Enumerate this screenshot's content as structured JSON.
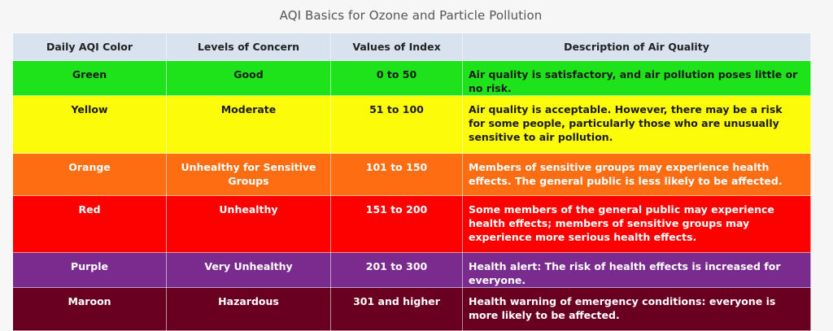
{
  "title": "AQI Basics for Ozone and Particle Pollution",
  "headers": [
    "Daily AQI Color",
    "Levels of Concern",
    "Values of Index",
    "Description of Air Quality"
  ],
  "rows": [
    {
      "color": "Green",
      "level": "Good",
      "values": "0 to 50",
      "description": "Air quality is satisfactory, and air pollution poses little or no risk.",
      "bg": "#1ee31a"
    },
    {
      "color": "Yellow",
      "level": "Moderate",
      "values": "51 to 100",
      "description": "Air quality is acceptable. However, there may be a risk for some people, particularly those who are unusually sensitive to air pollution.",
      "bg": "#fcfc08"
    },
    {
      "color": "Orange",
      "level": "Unhealthy for Sensitive Groups",
      "values": "101 to 150",
      "description": "Members of sensitive groups may experience health effects. The general public is less likely to be affected.",
      "bg": "#ff6d12"
    },
    {
      "color": "Red",
      "level": "Unhealthy",
      "values": "151 to 200",
      "description": "Some members of the general public may experience health effects; members of sensitive groups may experience more serious health effects.",
      "bg": "#fd0000"
    },
    {
      "color": "Purple",
      "level": "Very Unhealthy",
      "values": "201 to 300",
      "description": "Health alert: The risk of health effects is increased for everyone.",
      "bg": "#7a2b8e"
    },
    {
      "color": "Maroon",
      "level": "Hazardous",
      "values": "301 and higher",
      "description": "Health warning of emergency conditions: everyone is more likely to be affected.",
      "bg": "#690022"
    }
  ]
}
